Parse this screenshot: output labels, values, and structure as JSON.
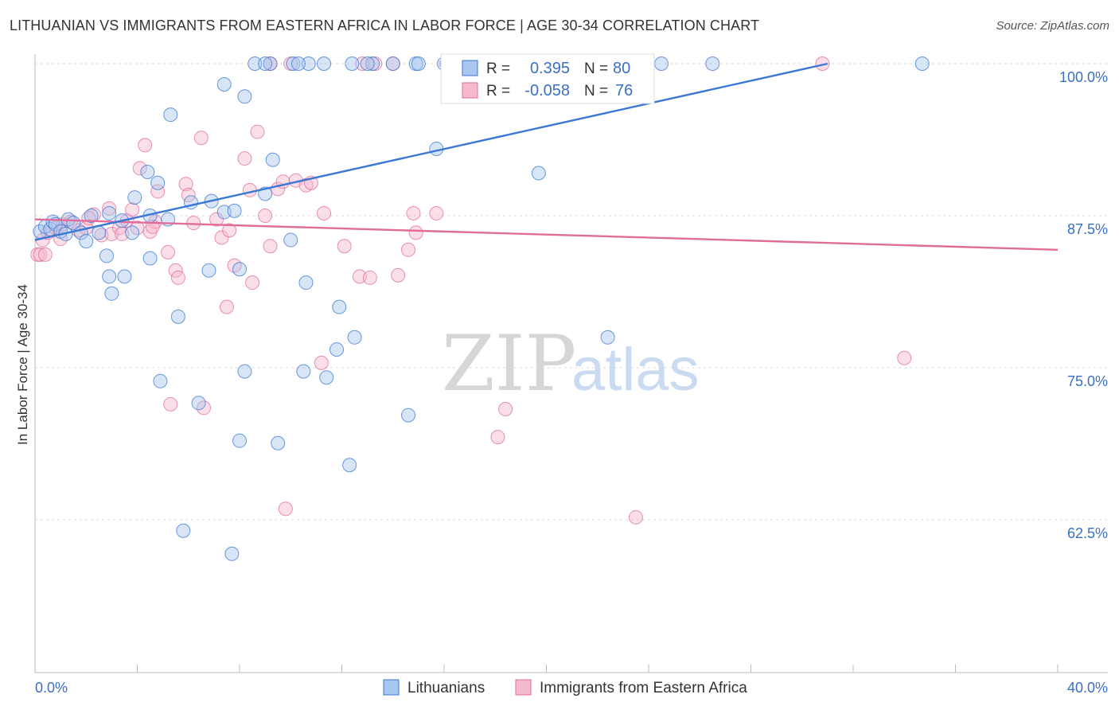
{
  "title": "LITHUANIAN VS IMMIGRANTS FROM EASTERN AFRICA IN LABOR FORCE | AGE 30-34 CORRELATION CHART",
  "source": "Source: ZipAtlas.com",
  "watermark": {
    "zip": "ZIP",
    "atlas": "atlas"
  },
  "colors": {
    "blue": "#3a78d4",
    "blue_fill": "#a9c6ee",
    "pink": "#e06c9a",
    "pink_fill": "#f6b8cd",
    "tick_label": "#3a6fc4"
  },
  "stats": {
    "r_label": "R =",
    "n_label": "N =",
    "blue": {
      "r": "0.395",
      "n": "80"
    },
    "pink": {
      "r": "-0.058",
      "n": "76"
    }
  },
  "chart_data": {
    "type": "scatter",
    "xlabel": "",
    "ylabel": "In Labor Force | Age 30-34",
    "xlim": [
      0,
      40
    ],
    "ylim": [
      50,
      101
    ],
    "x_tick_labels": [
      "0.0%",
      "40.0%"
    ],
    "y_ticks": [
      100,
      87.5,
      75,
      62.5
    ],
    "y_tick_labels": [
      "100.0%",
      "87.5%",
      "75.0%",
      "62.5%"
    ],
    "legend": {
      "position": "bottom-center",
      "entries": [
        "Lithuanians",
        "Immigrants from Eastern Africa"
      ]
    },
    "series": [
      {
        "name": "Lithuanians",
        "trend": {
          "x": [
            0,
            31
          ],
          "y": [
            85.5,
            100
          ]
        },
        "points": [
          [
            0.2,
            86.2
          ],
          [
            0.4,
            86.6
          ],
          [
            0.6,
            86.4
          ],
          [
            0.7,
            87.0
          ],
          [
            0.8,
            86.8
          ],
          [
            1.0,
            86.2
          ],
          [
            1.2,
            86.0
          ],
          [
            1.3,
            87.2
          ],
          [
            1.5,
            86.9
          ],
          [
            1.8,
            86.1
          ],
          [
            2.2,
            87.5
          ],
          [
            2.5,
            86.1
          ],
          [
            2.0,
            85.4
          ],
          [
            2.9,
            87.7
          ],
          [
            3.4,
            87.1
          ],
          [
            3.8,
            86.1
          ],
          [
            4.5,
            87.5
          ],
          [
            5.2,
            87.2
          ],
          [
            6.1,
            88.6
          ],
          [
            6.9,
            88.7
          ],
          [
            7.4,
            87.8
          ],
          [
            3.9,
            89.0
          ],
          [
            4.4,
            91.1
          ],
          [
            4.8,
            90.2
          ],
          [
            5.3,
            95.8
          ],
          [
            7.4,
            98.3
          ],
          [
            8.2,
            97.3
          ],
          [
            9.3,
            92.1
          ],
          [
            9.0,
            89.3
          ],
          [
            7.8,
            87.9
          ],
          [
            8.0,
            83.1
          ],
          [
            6.8,
            83.0
          ],
          [
            5.6,
            79.2
          ],
          [
            4.9,
            73.9
          ],
          [
            2.9,
            82.5
          ],
          [
            3.5,
            82.5
          ],
          [
            4.5,
            84.0
          ],
          [
            2.8,
            84.2
          ],
          [
            3.0,
            81.1
          ],
          [
            10.0,
            85.5
          ],
          [
            10.6,
            82.0
          ],
          [
            11.9,
            80.0
          ],
          [
            11.8,
            76.5
          ],
          [
            12.5,
            77.5
          ],
          [
            11.4,
            74.2
          ],
          [
            10.5,
            74.7
          ],
          [
            8.2,
            74.7
          ],
          [
            8.0,
            69.0
          ],
          [
            9.5,
            68.8
          ],
          [
            12.3,
            67.0
          ],
          [
            6.4,
            72.1
          ],
          [
            5.8,
            61.6
          ],
          [
            7.7,
            59.7
          ],
          [
            14.6,
            71.1
          ],
          [
            15.7,
            93.0
          ],
          [
            19.7,
            91.0
          ],
          [
            22.4,
            77.5
          ],
          [
            8.6,
            100
          ],
          [
            9.2,
            100
          ],
          [
            10.1,
            100
          ],
          [
            10.7,
            100
          ],
          [
            11.3,
            100
          ],
          [
            12.4,
            100
          ],
          [
            13.2,
            100
          ],
          [
            14.0,
            100
          ],
          [
            14.9,
            100
          ],
          [
            16.1,
            100
          ],
          [
            16.6,
            100
          ],
          [
            19.6,
            100
          ],
          [
            21.4,
            100
          ],
          [
            22.4,
            100
          ],
          [
            24.5,
            100
          ],
          [
            26.5,
            100
          ],
          [
            34.7,
            100
          ],
          [
            9.0,
            100
          ],
          [
            13.0,
            100
          ],
          [
            15.0,
            100
          ],
          [
            10.3,
            100
          ],
          [
            20.1,
            100
          ],
          [
            16.0,
            100
          ]
        ]
      },
      {
        "name": "Immigrants from Eastern Africa",
        "trend": {
          "x": [
            0,
            40
          ],
          "y": [
            87.2,
            84.7
          ]
        },
        "points": [
          [
            0.1,
            84.3
          ],
          [
            0.3,
            85.5
          ],
          [
            0.5,
            86.1
          ],
          [
            0.8,
            86.5
          ],
          [
            1.1,
            86.8
          ],
          [
            1.4,
            87.0
          ],
          [
            1.7,
            86.3
          ],
          [
            2.0,
            86.5
          ],
          [
            2.3,
            87.6
          ],
          [
            2.6,
            85.9
          ],
          [
            3.0,
            86.0
          ],
          [
            3.3,
            86.5
          ],
          [
            3.6,
            87.1
          ],
          [
            4.0,
            86.5
          ],
          [
            4.5,
            86.2
          ],
          [
            4.7,
            87.0
          ],
          [
            2.9,
            88.1
          ],
          [
            3.8,
            88.0
          ],
          [
            4.1,
            91.4
          ],
          [
            4.3,
            93.3
          ],
          [
            4.8,
            89.5
          ],
          [
            5.2,
            84.5
          ],
          [
            5.5,
            83.0
          ],
          [
            5.6,
            82.4
          ],
          [
            5.9,
            90.1
          ],
          [
            6.0,
            89.2
          ],
          [
            6.2,
            86.9
          ],
          [
            6.5,
            93.9
          ],
          [
            7.1,
            87.2
          ],
          [
            7.3,
            85.7
          ],
          [
            7.6,
            86.3
          ],
          [
            7.8,
            83.4
          ],
          [
            7.5,
            80.0
          ],
          [
            8.2,
            92.2
          ],
          [
            8.4,
            89.6
          ],
          [
            8.7,
            94.4
          ],
          [
            8.5,
            82.0
          ],
          [
            9.0,
            87.5
          ],
          [
            9.2,
            85.0
          ],
          [
            9.5,
            89.7
          ],
          [
            9.7,
            90.3
          ],
          [
            10.2,
            90.4
          ],
          [
            10.6,
            90.0
          ],
          [
            10.8,
            90.2
          ],
          [
            11.3,
            87.7
          ],
          [
            11.2,
            75.4
          ],
          [
            9.8,
            63.4
          ],
          [
            12.1,
            85.0
          ],
          [
            12.7,
            82.5
          ],
          [
            13.1,
            82.4
          ],
          [
            14.2,
            82.6
          ],
          [
            14.6,
            84.7
          ],
          [
            14.8,
            87.7
          ],
          [
            14.9,
            86.1
          ],
          [
            15.7,
            87.7
          ],
          [
            18.4,
            71.6
          ],
          [
            18.1,
            69.3
          ],
          [
            23.5,
            62.7
          ],
          [
            30.8,
            100
          ],
          [
            34.0,
            75.8
          ],
          [
            10.0,
            100
          ],
          [
            12.8,
            100
          ],
          [
            13.3,
            100
          ],
          [
            16.7,
            100
          ],
          [
            17.0,
            100
          ],
          [
            18.0,
            100
          ],
          [
            9.2,
            100
          ],
          [
            14.0,
            100
          ],
          [
            5.3,
            72.0
          ],
          [
            6.6,
            71.7
          ],
          [
            1.0,
            85.6
          ],
          [
            2.1,
            87.3
          ],
          [
            0.2,
            84.3
          ],
          [
            0.4,
            84.3
          ],
          [
            3.4,
            86.0
          ],
          [
            4.6,
            86.6
          ]
        ]
      }
    ]
  }
}
